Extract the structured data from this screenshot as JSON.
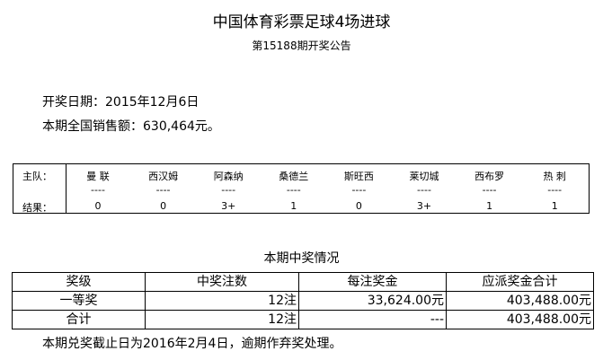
{
  "title": "中国体育彩票足球4场进球",
  "subtitle": "第15188期开奖公告",
  "draw_date": "开奖日期：2015年12月6日",
  "sales": "本期全国销售额：630,464元。",
  "results": {
    "home_label": "主队：",
    "result_label": "结果：",
    "teams": [
      {
        "name": "曼 联",
        "sep": "----",
        "result": "0"
      },
      {
        "name": "西汉姆",
        "sep": "----",
        "result": "0"
      },
      {
        "name": "阿森纳",
        "sep": "----",
        "result": "3+"
      },
      {
        "name": "桑德兰",
        "sep": "----",
        "result": "1"
      },
      {
        "name": "斯旺西",
        "sep": "----",
        "result": "0"
      },
      {
        "name": "莱切城",
        "sep": "----",
        "result": "3+"
      },
      {
        "name": "西布罗",
        "sep": "----",
        "result": "1"
      },
      {
        "name": "热 刺",
        "sep": "----",
        "result": "1"
      }
    ]
  },
  "prize": {
    "title": "本期中奖情况",
    "headers": [
      "奖级",
      "中奖注数",
      "每注奖金",
      "应派奖金合计"
    ],
    "rows": [
      [
        "一等奖",
        "12注",
        "33,624.00元",
        "403,488.00元"
      ],
      [
        "合计",
        "12注",
        "---",
        "403,488.00元"
      ]
    ]
  },
  "footer": "本期兑奖截止日为2016年2月4日，逾期作弃奖处理。"
}
